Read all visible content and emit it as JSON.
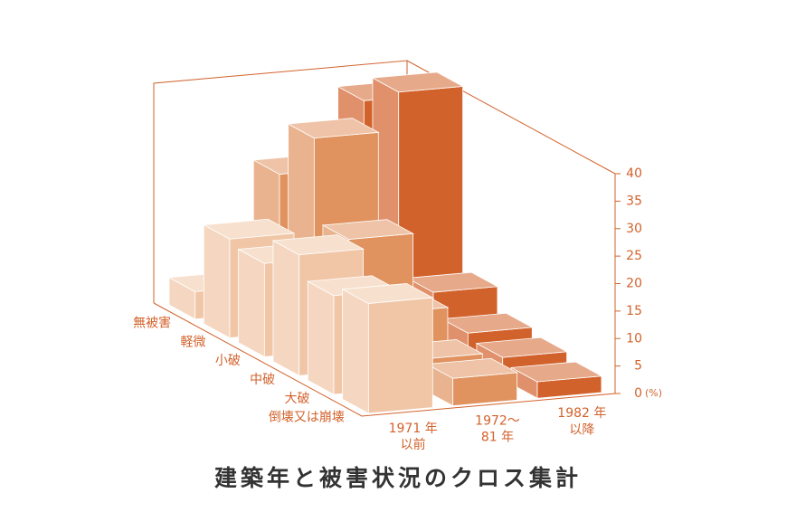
{
  "chart_data": {
    "type": "bar3d",
    "title": "建築年と被害状況のクロス集計",
    "categories": [
      "無被害",
      "軽微",
      "小破",
      "中破",
      "大破",
      "倒壊又は崩壊"
    ],
    "series": [
      {
        "name": "1971 年\n以前",
        "color": "#f0c6a6",
        "values": [
          5,
          18,
          17,
          22,
          18,
          20
        ]
      },
      {
        "name": "1972～\n81 年",
        "color": "#e0925f",
        "values": [
          25,
          35,
          20,
          10,
          5,
          5
        ]
      },
      {
        "name": "1982 年\n以降",
        "color": "#d2622b",
        "values": [
          37,
          42,
          9,
          5,
          4,
          3
        ]
      }
    ],
    "y_unit": "(%)",
    "ylim": [
      0,
      40
    ],
    "yticks": [
      0,
      5,
      10,
      15,
      20,
      25,
      30,
      35,
      40
    ]
  }
}
